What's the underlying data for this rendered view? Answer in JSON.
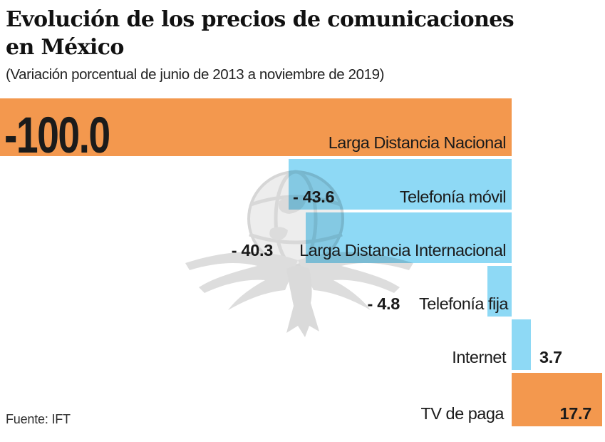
{
  "header": {
    "title_lines": [
      "Evolución de los precios de comunicaciones",
      "en México"
    ],
    "subtitle": "(Variación porcentual de junio de 2013 a noviembre de 2019)"
  },
  "footer": {
    "source": "Fuente: IFT"
  },
  "watermark": {
    "icon": "eagle-globe-watermark"
  },
  "chart_data": {
    "type": "bar",
    "orientation": "horizontal",
    "title": "Evolución de los precios de comunicaciones en México",
    "subtitle": "(Variación porcentual de junio de 2013 a noviembre de 2019)",
    "source": "Fuente: IFT",
    "unit": "percent variation",
    "categories": [
      "Larga Distancia Nacional",
      "Telefonía móvil",
      "Larga Distancia Internacional",
      "Telefonía fija",
      "Internet",
      "TV de paga"
    ],
    "values": [
      -100.0,
      -43.6,
      -40.3,
      -4.8,
      3.7,
      17.7
    ],
    "value_labels": [
      "-100.0",
      "- 43.6",
      "- 40.3",
      "- 4.8",
      "3.7",
      "17.7"
    ],
    "bar_colors": [
      "#F3984E",
      "#8ED9F5",
      "#8ED9F5",
      "#8ED9F5",
      "#8ED9F5",
      "#F3984E"
    ],
    "colors": {
      "orange": "#F3984E",
      "blue": "#8ED9F5",
      "text": "#1B1B1B"
    },
    "xlim": [
      -100,
      18.3
    ],
    "baseline": 0,
    "grid": false,
    "legend": false
  }
}
